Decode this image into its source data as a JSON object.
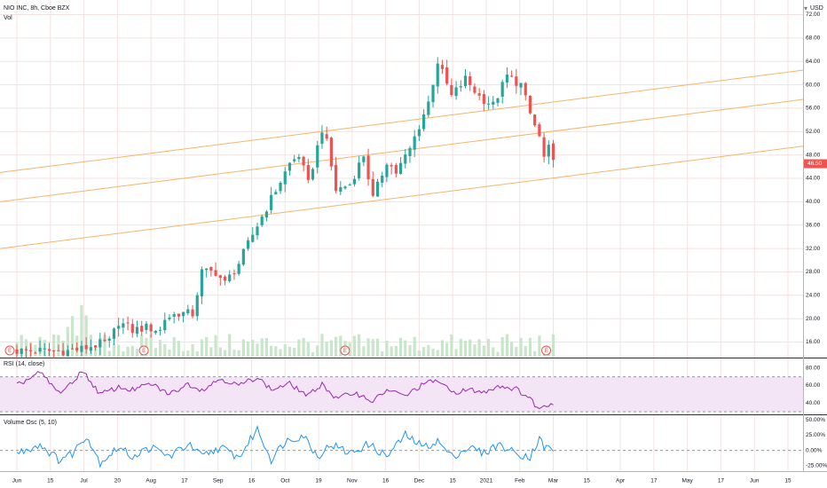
{
  "header": {
    "symbol_line": "NIO INC, 8h, Cboe BZX",
    "volume_label": "Vol",
    "currency": "USD",
    "currency_menu_icon": "chevron-down-icon"
  },
  "rsi_label": "RSI (14, close)",
  "vo_label": "Volume Osc (5, 10)",
  "earnings_marker": "E",
  "last_price_label": "46.50",
  "colors": {
    "up": "#26a69a",
    "down": "#ef5350",
    "trend": "#f5b56b",
    "rsi": "#9c27b0",
    "rsi_band": "#f3e5f5",
    "osc": "#2196f3",
    "grid": "#f4e2e2",
    "volume": "#c8e6c9",
    "price_tag": "#ef5350"
  },
  "chart_data": [
    {
      "type": "candlestick",
      "title": "NIO INC, 8h, Cboe BZX",
      "currency": "USD",
      "y_ticks": [
        "72.00",
        "68.00",
        "64.00",
        "60.00",
        "56.00",
        "52.00",
        "48.00",
        "44.00",
        "40.00",
        "36.00",
        "32.00",
        "28.00",
        "24.00",
        "20.00",
        "16.00"
      ],
      "ylim": [
        13.5,
        74.5
      ],
      "x_ticks": [
        "Jun",
        "15",
        "Jul",
        "20",
        "Aug",
        "17",
        "Sep",
        "16",
        "Oct",
        "19",
        "Nov",
        "16",
        "Dec",
        "15",
        "2021",
        "Feb",
        "Mar",
        "15",
        "Apr",
        "17",
        "May",
        "17",
        "Jun",
        "15"
      ],
      "last_price": 46.5,
      "keyframes": [
        [
          0,
          14.5
        ],
        [
          8,
          14.5
        ],
        [
          11,
          14.5
        ],
        [
          14,
          14.8
        ],
        [
          17,
          15.5
        ],
        [
          20,
          16.0
        ],
        [
          22,
          19.5
        ],
        [
          25,
          18.0
        ],
        [
          28,
          18.5
        ],
        [
          31,
          18.0
        ],
        [
          32,
          20.0
        ],
        [
          35,
          21.0
        ],
        [
          38,
          20.8
        ],
        [
          40,
          28.0
        ],
        [
          43,
          28.0
        ],
        [
          45,
          26.0
        ],
        [
          48,
          29.5
        ],
        [
          52,
          36.0
        ],
        [
          56,
          42.0
        ],
        [
          59,
          46.5
        ],
        [
          61,
          48.0
        ],
        [
          63,
          43.0
        ],
        [
          66,
          52.5
        ],
        [
          67,
          50.0
        ],
        [
          69,
          42.0
        ],
        [
          72,
          43.0
        ],
        [
          75,
          48.0
        ],
        [
          77,
          40.5
        ],
        [
          80,
          47.0
        ],
        [
          82,
          45.0
        ],
        [
          85,
          49.0
        ],
        [
          87,
          53.0
        ],
        [
          89,
          57.0
        ],
        [
          91,
          64.0
        ],
        [
          94,
          58.0
        ],
        [
          97,
          61.0
        ],
        [
          100,
          58.0
        ],
        [
          103,
          56.5
        ],
        [
          106,
          61.5
        ],
        [
          109,
          60.0
        ],
        [
          111,
          55.0
        ],
        [
          113,
          51.0
        ],
        [
          114,
          47.5
        ],
        [
          115,
          49.0
        ],
        [
          116,
          46.5
        ]
      ],
      "trendlines": [
        {
          "from": [
            "Jun-01",
            45.0
          ],
          "to": [
            "Jun-15+",
            62.5
          ]
        },
        {
          "from": [
            "Jun-01",
            40.0
          ],
          "to": [
            "Jun-15+",
            57.5
          ]
        },
        {
          "from": [
            "Jun-01",
            32.0
          ],
          "to": [
            "Jun-15+",
            49.5
          ]
        }
      ],
      "earnings_markers": [
        "Jun",
        "Aug",
        "Nov",
        "Mar"
      ]
    },
    {
      "type": "line",
      "name": "RSI (14, close)",
      "y_ticks": [
        "80.00",
        "60.00",
        "40.00"
      ],
      "ylim": [
        28,
        90
      ],
      "band": [
        30,
        70
      ],
      "keyframes": [
        [
          0,
          60
        ],
        [
          5,
          75
        ],
        [
          9,
          52
        ],
        [
          12,
          62
        ],
        [
          14,
          78
        ],
        [
          18,
          50
        ],
        [
          22,
          58
        ],
        [
          25,
          55
        ],
        [
          29,
          62
        ],
        [
          33,
          50
        ],
        [
          37,
          62
        ],
        [
          40,
          55
        ],
        [
          44,
          68
        ],
        [
          48,
          60
        ],
        [
          52,
          70
        ],
        [
          55,
          55
        ],
        [
          59,
          62
        ],
        [
          63,
          48
        ],
        [
          66,
          62
        ],
        [
          69,
          45
        ],
        [
          73,
          52
        ],
        [
          77,
          42
        ],
        [
          80,
          55
        ],
        [
          84,
          48
        ],
        [
          88,
          62
        ],
        [
          91,
          66
        ],
        [
          94,
          52
        ],
        [
          98,
          55
        ],
        [
          101,
          52
        ],
        [
          104,
          60
        ],
        [
          108,
          56
        ],
        [
          111,
          45
        ],
        [
          113,
          32
        ],
        [
          114,
          38
        ],
        [
          116,
          40
        ]
      ]
    },
    {
      "type": "line",
      "name": "Volume Osc (5, 10)",
      "y_ticks": [
        "50.00%",
        "25.00%",
        "0.00%",
        "-25.00%"
      ],
      "ylim": [
        -34,
        56
      ],
      "keyframes": [
        [
          0,
          -5
        ],
        [
          5,
          10
        ],
        [
          9,
          -15
        ],
        [
          12,
          -5
        ],
        [
          15,
          25
        ],
        [
          18,
          -20
        ],
        [
          22,
          5
        ],
        [
          25,
          -10
        ],
        [
          29,
          5
        ],
        [
          33,
          -10
        ],
        [
          37,
          10
        ],
        [
          40,
          -10
        ],
        [
          44,
          5
        ],
        [
          48,
          -12
        ],
        [
          52,
          35
        ],
        [
          55,
          -15
        ],
        [
          58,
          15
        ],
        [
          62,
          25
        ],
        [
          65,
          -10
        ],
        [
          68,
          10
        ],
        [
          72,
          -5
        ],
        [
          76,
          10
        ],
        [
          80,
          -10
        ],
        [
          84,
          25
        ],
        [
          88,
          5
        ],
        [
          91,
          15
        ],
        [
          94,
          -10
        ],
        [
          98,
          5
        ],
        [
          101,
          -5
        ],
        [
          104,
          10
        ],
        [
          108,
          -5
        ],
        [
          111,
          -10
        ],
        [
          113,
          20
        ],
        [
          114,
          5
        ],
        [
          116,
          2
        ]
      ]
    }
  ]
}
